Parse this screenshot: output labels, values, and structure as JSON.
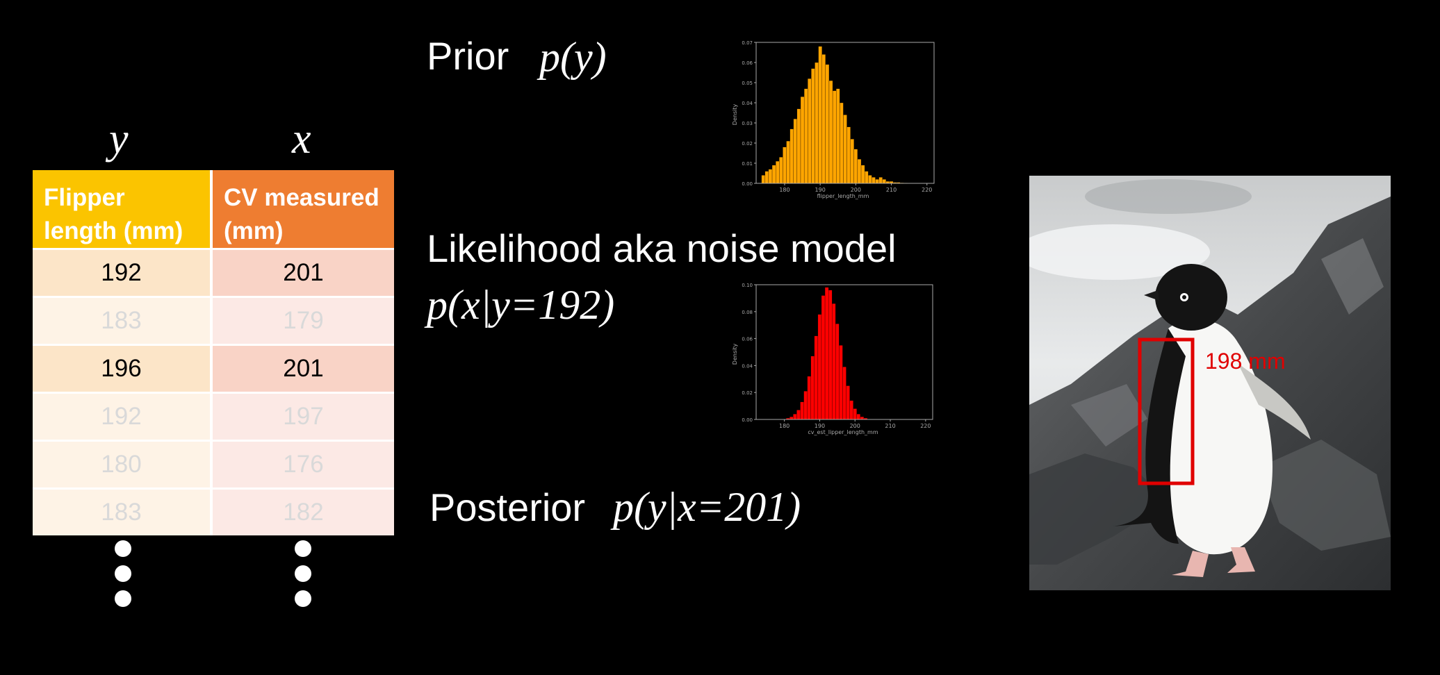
{
  "table": {
    "var_y": "y",
    "var_x": "x",
    "header_y": "Flipper length (mm)",
    "header_x": "CV measured (mm)",
    "rows": [
      {
        "y": "192",
        "x": "201",
        "emphasis": "strong"
      },
      {
        "y": "183",
        "x": "179",
        "emphasis": "faint"
      },
      {
        "y": "196",
        "x": "201",
        "emphasis": "strong"
      },
      {
        "y": "192",
        "x": "197",
        "emphasis": "faint"
      },
      {
        "y": "180",
        "x": "176",
        "emphasis": "faint"
      },
      {
        "y": "183",
        "x": "182",
        "emphasis": "faint"
      }
    ]
  },
  "prior": {
    "label": "Prior",
    "math": "p(y)"
  },
  "likelihood": {
    "label": "Likelihood aka noise model",
    "math": "p(x|y=192)"
  },
  "posterior": {
    "label": "Posterior",
    "math": "p(y|x=201)"
  },
  "charts": {
    "colors": {
      "prior": "#ffa500",
      "likelihood": "#ff0000",
      "axis": "#aaaaaa"
    },
    "prior_ylabel": "Density",
    "prior_xlabel": "flipper_length_mm",
    "likelihood_ylabel": "Density",
    "likelihood_xlabel": "cv_est_lipper_length_mm"
  },
  "chart_data": [
    {
      "type": "bar",
      "title": "",
      "xlabel": "flipper_length_mm",
      "ylabel": "Density",
      "xlim": [
        172,
        222
      ],
      "ylim": [
        0,
        0.07
      ],
      "xticks": [
        180,
        190,
        200,
        210,
        220
      ],
      "yticks": [
        0.0,
        0.01,
        0.02,
        0.03,
        0.04,
        0.05,
        0.06,
        0.07
      ],
      "yticklabels": [
        "0.00",
        "0.01",
        "0.02",
        "0.03",
        "0.04",
        "0.05",
        "0.06",
        "0.07"
      ],
      "bin_width": 1,
      "x": [
        174,
        175,
        176,
        177,
        178,
        179,
        180,
        181,
        182,
        183,
        184,
        185,
        186,
        187,
        188,
        189,
        190,
        191,
        192,
        193,
        194,
        195,
        196,
        197,
        198,
        199,
        200,
        201,
        202,
        203,
        204,
        205,
        206,
        207,
        208,
        209,
        210,
        211,
        212,
        213,
        214
      ],
      "values": [
        0.004,
        0.006,
        0.007,
        0.009,
        0.011,
        0.013,
        0.018,
        0.021,
        0.027,
        0.032,
        0.037,
        0.043,
        0.047,
        0.052,
        0.057,
        0.06,
        0.068,
        0.064,
        0.059,
        0.051,
        0.046,
        0.047,
        0.04,
        0.034,
        0.028,
        0.022,
        0.017,
        0.012,
        0.009,
        0.006,
        0.004,
        0.003,
        0.002,
        0.003,
        0.002,
        0.001,
        0.001,
        0.0005,
        0.0005,
        0.0003,
        0.0002
      ]
    },
    {
      "type": "bar",
      "title": "",
      "xlabel": "cv_est_lipper_length_mm",
      "ylabel": "Density",
      "xlim": [
        172,
        222
      ],
      "ylim": [
        0,
        0.1
      ],
      "xticks": [
        180,
        190,
        200,
        210,
        220
      ],
      "yticks": [
        0.0,
        0.02,
        0.04,
        0.06,
        0.08,
        0.1
      ],
      "yticklabels": [
        "0.00",
        "0.02",
        "0.04",
        "0.06",
        "0.08",
        "0.10"
      ],
      "bin_width": 1,
      "x": [
        181,
        182,
        183,
        184,
        185,
        186,
        187,
        188,
        189,
        190,
        191,
        192,
        193,
        194,
        195,
        196,
        197,
        198,
        199,
        200,
        201,
        202,
        203
      ],
      "values": [
        0.001,
        0.002,
        0.004,
        0.007,
        0.013,
        0.021,
        0.032,
        0.047,
        0.062,
        0.078,
        0.092,
        0.098,
        0.096,
        0.086,
        0.071,
        0.055,
        0.039,
        0.025,
        0.014,
        0.008,
        0.004,
        0.002,
        0.001
      ]
    }
  ],
  "photo": {
    "measurement_label": "198 mm",
    "box_color": "#e00000"
  }
}
